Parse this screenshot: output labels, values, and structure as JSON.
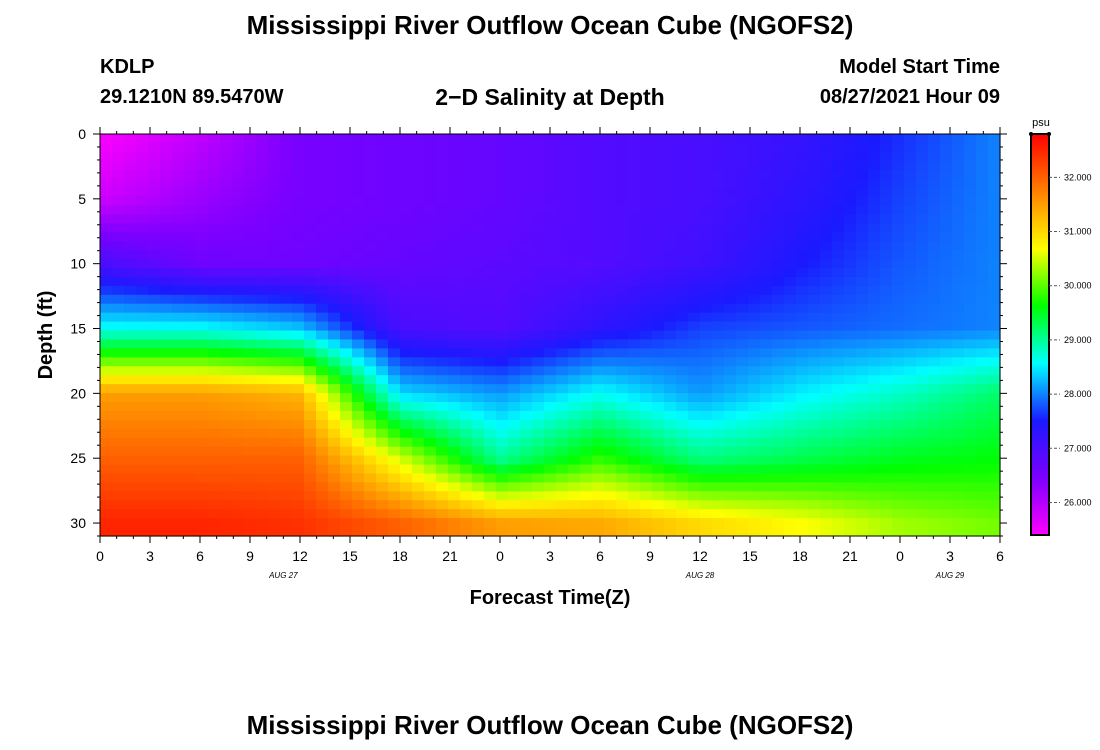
{
  "page": {
    "title": "Mississippi River Outflow Ocean Cube (NGOFS2)",
    "footer_title": "Mississippi River Outflow Ocean Cube (NGOFS2)",
    "station": "KDLP",
    "coordinates": "29.1210N  89.5470W",
    "plot_title": "2−D Salinity at Depth",
    "model_start_label": "Model Start Time",
    "model_start_value": "08/27/2021 Hour 09"
  },
  "chart_data": {
    "type": "heatmap",
    "title": "2−D Salinity at Depth",
    "xlabel": "Forecast Time(Z)",
    "ylabel": "Depth (ft)",
    "x_hours": [
      0,
      6,
      12,
      18,
      24,
      30,
      36,
      42,
      48,
      54
    ],
    "x_tick_labels": [
      "0",
      "3",
      "6",
      "9",
      "12",
      "15",
      "18",
      "21",
      "0",
      "3",
      "6",
      "9",
      "12",
      "15",
      "18",
      "21",
      "0",
      "3",
      "6"
    ],
    "x_range_hours": [
      0,
      54
    ],
    "date_labels": [
      {
        "label": "AUG 27",
        "hour": 11
      },
      {
        "label": "AUG 28",
        "hour": 36
      },
      {
        "label": "AUG 29",
        "hour": 51
      }
    ],
    "y_depth_ft": [
      0,
      5,
      10,
      15,
      20,
      25,
      30
    ],
    "y_range_ft": [
      0,
      31
    ],
    "y_ticks": [
      0,
      5,
      10,
      15,
      20,
      25,
      30
    ],
    "salinity_psu": [
      [
        25.4,
        25.9,
        26.5,
        26.6,
        26.7,
        26.9,
        27.0,
        27.2,
        27.6,
        28.0
      ],
      [
        25.8,
        26.2,
        26.5,
        26.6,
        26.7,
        26.9,
        27.0,
        27.3,
        27.7,
        28.0
      ],
      [
        27.0,
        26.6,
        26.6,
        26.7,
        26.8,
        26.9,
        27.1,
        27.5,
        27.8,
        28.0
      ],
      [
        28.6,
        28.6,
        28.3,
        27.0,
        26.9,
        27.3,
        27.7,
        27.8,
        27.9,
        28.0
      ],
      [
        31.5,
        31.5,
        31.3,
        28.4,
        28.1,
        28.6,
        28.1,
        28.5,
        28.8,
        29.2
      ],
      [
        32.0,
        32.0,
        32.0,
        30.5,
        29.0,
        29.8,
        29.1,
        29.3,
        29.5,
        29.6
      ],
      [
        32.5,
        32.5,
        32.4,
        32.0,
        31.5,
        31.4,
        31.0,
        30.7,
        30.3,
        30.1
      ]
    ],
    "colorbar": {
      "unit": "psu",
      "min": 25.4,
      "max": 32.8,
      "tick_values": [
        26.0,
        27.0,
        28.0,
        29.0,
        30.0,
        31.0,
        32.0
      ],
      "tick_labels": [
        "26.000",
        "27.000",
        "28.000",
        "29.000",
        "30.000",
        "31.000",
        "32.000"
      ],
      "colors": [
        "#ff00ff",
        "#7b00ff",
        "#1a1aff",
        "#00ffff",
        "#00ff00",
        "#ffff00",
        "#ff8000",
        "#ff0000"
      ]
    }
  }
}
